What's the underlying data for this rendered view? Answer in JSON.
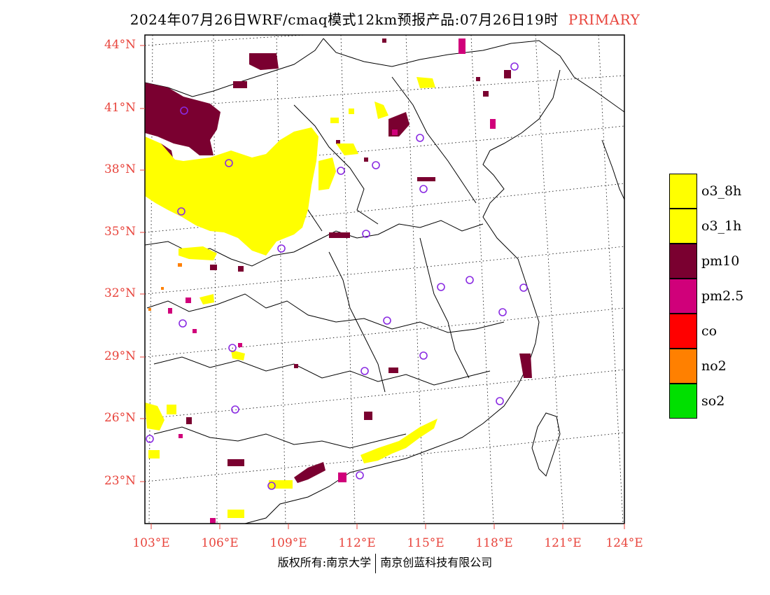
{
  "header": {
    "title": "2024年07月26日WRF/cmaq模式12km预报产品:07月26日19时",
    "tag": "PRIMARY"
  },
  "axes": {
    "lat_labels": [
      "44°N",
      "41°N",
      "38°N",
      "35°N",
      "32°N",
      "29°N",
      "26°N",
      "23°N"
    ],
    "lon_labels": [
      "103°E",
      "106°E",
      "109°E",
      "112°E",
      "115°E",
      "118°E",
      "121°E",
      "124°E"
    ]
  },
  "legend": [
    {
      "label": "o3_8h",
      "color": "#ffff00"
    },
    {
      "label": "o3_1h",
      "color": "#ffff00"
    },
    {
      "label": "pm10",
      "color": "#7a0030"
    },
    {
      "label": "pm2.5",
      "color": "#d0007a"
    },
    {
      "label": "co",
      "color": "#ff0000"
    },
    {
      "label": "no2",
      "color": "#ff8000"
    },
    {
      "label": "so2",
      "color": "#00e000"
    }
  ],
  "footer": {
    "left": "版权所有:南京大学",
    "right": "南京创蓝科技有限公司"
  },
  "colors": {
    "label_red": "#e8443c",
    "o3": "#ffff00",
    "pm10": "#7a0030",
    "pm25": "#d0007a",
    "no2": "#ff8000",
    "station_ring": "#8a2be2"
  }
}
